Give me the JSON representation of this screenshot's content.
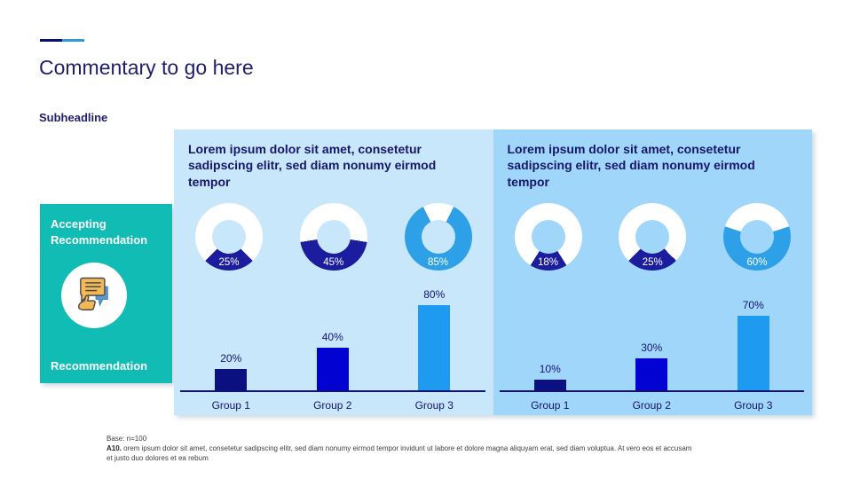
{
  "slide": {
    "title": "Commentary to go here",
    "subheadline": "Subheadline",
    "accent_dark": "#0A1172",
    "accent_light": "#2E9BD6",
    "background": "#FFFFFF"
  },
  "sidebar": {
    "bg_color": "#10BCB4",
    "top_label": "Accepting Recommendation",
    "bottom_label": "Recommendation",
    "icon": "feedback-speech-bubbles-thumbs-up-icon"
  },
  "panels": [
    {
      "bg_color": "#C9E7FB",
      "heading": "Lorem ipsum dolor sit amet, consetetur sadipscing elitr, sed diam nonumy eirmod tempor",
      "donuts": [
        {
          "label": "25%",
          "value": 25,
          "color": "#1C1C9E"
        },
        {
          "label": "45%",
          "value": 45,
          "color": "#1C1C9E"
        },
        {
          "label": "85%",
          "value": 85,
          "color": "#2DA0E8"
        }
      ],
      "bars": [
        {
          "category": "Group 1",
          "label": "20%",
          "value": 20,
          "color": "#0A1080"
        },
        {
          "category": "Group 2",
          "label": "40%",
          "value": 40,
          "color": "#0202D2"
        },
        {
          "category": "Group 3",
          "label": "80%",
          "value": 80,
          "color": "#1E9BF0"
        }
      ]
    },
    {
      "bg_color": "#A0D6F9",
      "heading": "Lorem ipsum dolor sit amet, consetetur sadipscing elitr, sed diam nonumy eirmod tempor",
      "donuts": [
        {
          "label": "18%",
          "value": 18,
          "color": "#1C1C9E"
        },
        {
          "label": "25%",
          "value": 25,
          "color": "#1C1C9E"
        },
        {
          "label": "60%",
          "value": 60,
          "color": "#2DA0E8"
        }
      ],
      "bars": [
        {
          "category": "Group 1",
          "label": "10%",
          "value": 10,
          "color": "#0A1080"
        },
        {
          "category": "Group 2",
          "label": "30%",
          "value": 30,
          "color": "#0202D2"
        },
        {
          "category": "Group 3",
          "label": "70%",
          "value": 70,
          "color": "#1E9BF0"
        }
      ]
    }
  ],
  "footer": {
    "base": "Base: n=100",
    "question_code": "A10.",
    "note": "orem ipsum dolor sit amet, consetetur sadipscing elitr, sed diam nonumy eirmod tempor invidunt ut labore et dolore magna aliquyam erat, sed diam voluptua. At vero eos et accusam et justo duo dolores et ea rebum"
  },
  "chart_data": [
    {
      "type": "pie",
      "subtype": "donut",
      "panel": "left",
      "title": "Lorem ipsum dolor sit amet, consetetur sadipscing elitr, sed diam nonumy eirmod tempor",
      "labels": [
        "25%",
        "45%",
        "85%"
      ],
      "values": [
        25,
        45,
        85
      ],
      "slice_colors": [
        "#1C1C9E",
        "#1C1C9E",
        "#2DA0E8"
      ],
      "ring_unfilled_color": "#FFFFFF"
    },
    {
      "type": "bar",
      "panel": "left",
      "categories": [
        "Group 1",
        "Group 2",
        "Group 3"
      ],
      "values": [
        20,
        40,
        80
      ],
      "value_labels": [
        "20%",
        "40%",
        "80%"
      ],
      "bar_colors": [
        "#0A1080",
        "#0202D2",
        "#1E9BF0"
      ],
      "ylim": [
        0,
        100
      ],
      "grid": false,
      "legend": false
    },
    {
      "type": "pie",
      "subtype": "donut",
      "panel": "right",
      "title": "Lorem ipsum dolor sit amet, consetetur sadipscing elitr, sed diam nonumy eirmod tempor",
      "labels": [
        "18%",
        "25%",
        "60%"
      ],
      "values": [
        18,
        25,
        60
      ],
      "slice_colors": [
        "#1C1C9E",
        "#1C1C9E",
        "#2DA0E8"
      ],
      "ring_unfilled_color": "#FFFFFF"
    },
    {
      "type": "bar",
      "panel": "right",
      "categories": [
        "Group 1",
        "Group 2",
        "Group 3"
      ],
      "values": [
        10,
        30,
        70
      ],
      "value_labels": [
        "10%",
        "30%",
        "70%"
      ],
      "bar_colors": [
        "#0A1080",
        "#0202D2",
        "#1E9BF0"
      ],
      "ylim": [
        0,
        100
      ],
      "grid": false,
      "legend": false
    }
  ]
}
